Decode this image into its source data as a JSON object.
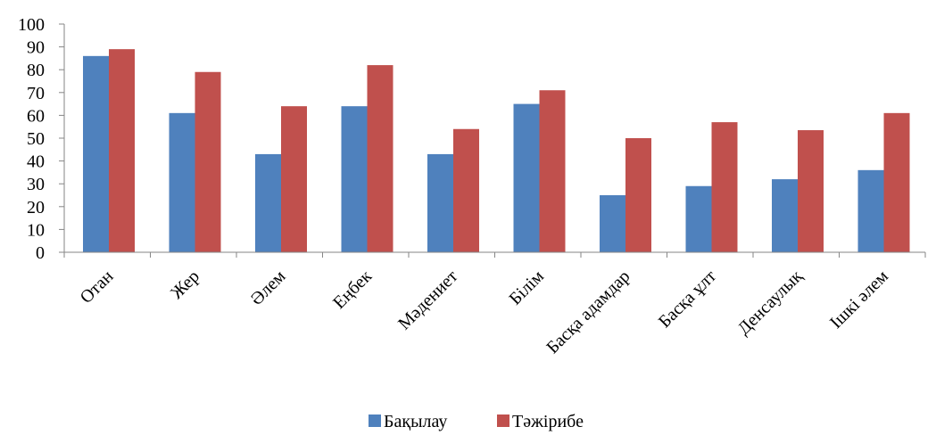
{
  "chart_data": {
    "type": "bar",
    "categories": [
      "Отан",
      "Жер",
      "Әлем",
      "Еңбек",
      "Мәдениет",
      "Білім",
      "Басқа адамдар",
      "Басқа ұлт",
      "Денсаулық",
      "Ішкі әлем"
    ],
    "series": [
      {
        "name": "Бақылау",
        "color": "#4F81BD",
        "values": [
          86,
          61,
          43,
          64,
          43,
          65,
          25,
          29,
          32,
          36
        ]
      },
      {
        "name": "Тәжірибе",
        "color": "#C0504D",
        "values": [
          89,
          79,
          64,
          82,
          54,
          71,
          50,
          57,
          53.5,
          61
        ]
      }
    ],
    "yticks": [
      "0",
      "10",
      "20",
      "30",
      "40",
      "50",
      "60",
      "70",
      "80",
      "90",
      "100"
    ],
    "ylim": [
      0,
      100
    ],
    "grid": false,
    "legend_position": "bottom"
  }
}
